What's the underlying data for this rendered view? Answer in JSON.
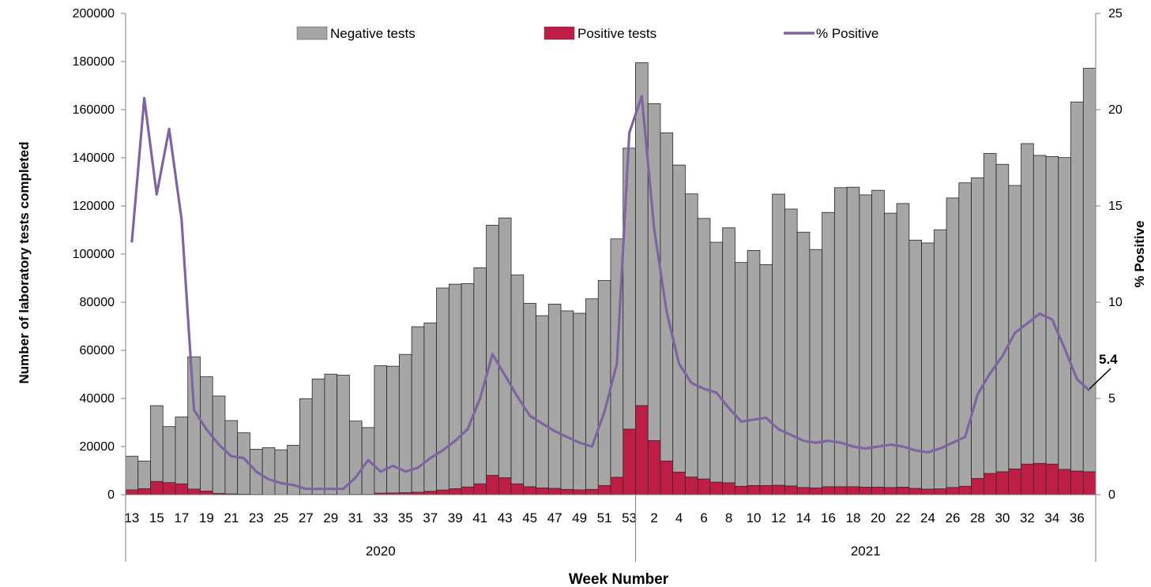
{
  "chart_data": {
    "type": "bar",
    "stacked": true,
    "xlabel": "Week Number",
    "ylabel_left": "Number of laboratory tests completed",
    "ylabel_right": "% Positive",
    "ylim_left": [
      0,
      200000
    ],
    "ylim_right": [
      0,
      25
    ],
    "yticks_left": [
      "0",
      "20000",
      "40000",
      "60000",
      "80000",
      "100000",
      "120000",
      "140000",
      "160000",
      "180000",
      "200000"
    ],
    "yticks_right": [
      "0",
      "5",
      "10",
      "15",
      "20",
      "25"
    ],
    "grid": false,
    "legend": {
      "position": "top",
      "entries": [
        "Negative tests",
        "Positive tests",
        "% Positive"
      ]
    },
    "colors": {
      "negative": "#a6a6a6",
      "positive": "#be1e45",
      "line": "#8064a2"
    },
    "years": [
      {
        "label": "2020",
        "weeks": [
          13,
          14,
          15,
          16,
          17,
          18,
          19,
          20,
          21,
          22,
          23,
          24,
          25,
          26,
          27,
          28,
          29,
          30,
          31,
          32,
          33,
          34,
          35,
          36,
          37,
          38,
          39,
          40,
          41,
          42,
          43,
          44,
          45,
          46,
          47,
          48,
          49,
          50,
          51,
          52,
          53
        ]
      },
      {
        "label": "2021",
        "weeks": [
          1,
          2,
          3,
          4,
          5,
          6,
          7,
          8,
          9,
          10,
          11,
          12,
          13,
          14,
          15,
          16,
          17,
          18,
          19,
          20,
          21,
          22,
          23,
          24,
          25,
          26,
          27,
          28,
          29,
          30,
          31,
          32,
          33,
          34,
          35,
          36,
          37
        ]
      }
    ],
    "tick_labels": [
      "13",
      "15",
      "17",
      "19",
      "21",
      "23",
      "25",
      "27",
      "29",
      "31",
      "33",
      "35",
      "37",
      "39",
      "41",
      "43",
      "45",
      "47",
      "49",
      "51",
      "53",
      "2",
      "4",
      "6",
      "8",
      "10",
      "12",
      "14",
      "16",
      "18",
      "20",
      "22",
      "24",
      "26",
      "28",
      "30",
      "32",
      "34",
      "36"
    ],
    "series": [
      {
        "name": "Negative tests",
        "values": [
          14000,
          11500,
          31500,
          23300,
          27800,
          55000,
          47500,
          40500,
          30500,
          25500,
          18800,
          19500,
          18600,
          20500,
          39800,
          48000,
          50000,
          49600,
          30500,
          27800,
          53000,
          52700,
          57500,
          68800,
          70000,
          84000,
          85000,
          84500,
          89800,
          104000,
          108000,
          86800,
          76200,
          71600,
          76600,
          74200,
          73400,
          79200,
          85200,
          99100,
          116800,
          142500,
          140000,
          136400,
          127600,
          117700,
          108300,
          99700,
          106000,
          93000,
          97700,
          91800,
          121000,
          115100,
          106100,
          99100,
          114000,
          124300,
          124500,
          121500,
          123400,
          114000,
          117900,
          103200,
          102300,
          107700,
          120300,
          126100,
          125000,
          133000,
          127800,
          117800,
          133200,
          128000,
          127800,
          129600,
          153400,
          167700
        ]
      },
      {
        "name": "Positive tests",
        "values": [
          2000,
          2500,
          5500,
          5000,
          4500,
          2300,
          1500,
          500,
          300,
          200,
          100,
          50,
          50,
          50,
          100,
          100,
          100,
          50,
          100,
          100,
          600,
          700,
          800,
          1000,
          1400,
          1900,
          2500,
          3200,
          4500,
          8000,
          7000,
          4500,
          3300,
          2800,
          2600,
          2200,
          2000,
          2200,
          3800,
          7200,
          27200,
          37000,
          22500,
          14000,
          9400,
          7300,
          6500,
          5200,
          4900,
          3500,
          3800,
          3800,
          3900,
          3600,
          3000,
          2800,
          3300,
          3300,
          3300,
          3100,
          3100,
          3000,
          3100,
          2600,
          2300,
          2400,
          3000,
          3500,
          6700,
          8800,
          9500,
          10700,
          12700,
          13000,
          12700,
          10500,
          9800,
          9500
        ]
      },
      {
        "name": "% Positive",
        "values": [
          13.1,
          20.6,
          15.6,
          19.0,
          14.3,
          4.4,
          3.4,
          2.6,
          2.0,
          1.9,
          1.2,
          0.8,
          0.6,
          0.5,
          0.3,
          0.3,
          0.3,
          0.3,
          0.9,
          1.8,
          1.2,
          1.5,
          1.2,
          1.4,
          1.9,
          2.3,
          2.8,
          3.4,
          5.0,
          7.3,
          6.2,
          5.1,
          4.1,
          3.7,
          3.3,
          3.0,
          2.7,
          2.5,
          4.3,
          6.8,
          18.8,
          20.7,
          13.8,
          9.5,
          6.8,
          5.8,
          5.5,
          5.3,
          4.5,
          3.8,
          3.9,
          4.0,
          3.4,
          3.1,
          2.8,
          2.7,
          2.8,
          2.7,
          2.5,
          2.4,
          2.5,
          2.6,
          2.5,
          2.3,
          2.2,
          2.4,
          2.7,
          3.0,
          5.2,
          6.3,
          7.2,
          8.4,
          8.9,
          9.4,
          9.1,
          7.6,
          6.0,
          5.4
        ]
      }
    ],
    "annotation": {
      "label": "5.4"
    }
  }
}
